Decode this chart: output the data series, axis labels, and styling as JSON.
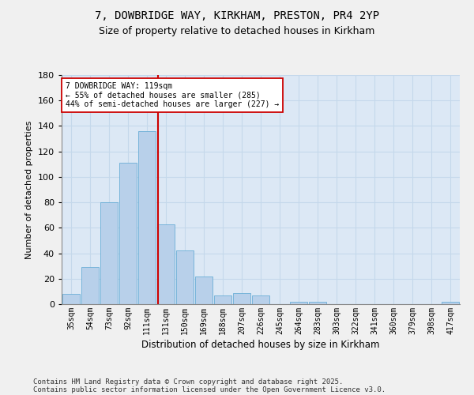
{
  "title1": "7, DOWBRIDGE WAY, KIRKHAM, PRESTON, PR4 2YP",
  "title2": "Size of property relative to detached houses in Kirkham",
  "xlabel": "Distribution of detached houses by size in Kirkham",
  "ylabel": "Number of detached properties",
  "bin_labels": [
    "35sqm",
    "54sqm",
    "73sqm",
    "92sqm",
    "111sqm",
    "131sqm",
    "150sqm",
    "169sqm",
    "188sqm",
    "207sqm",
    "226sqm",
    "245sqm",
    "264sqm",
    "283sqm",
    "303sqm",
    "322sqm",
    "341sqm",
    "360sqm",
    "379sqm",
    "398sqm",
    "417sqm"
  ],
  "bar_heights": [
    8,
    29,
    80,
    111,
    136,
    63,
    42,
    22,
    7,
    9,
    7,
    0,
    2,
    2,
    0,
    0,
    0,
    0,
    0,
    0,
    2
  ],
  "bar_color": "#b8d0ea",
  "bar_edge_color": "#6baed6",
  "vline_color": "#cc0000",
  "vline_x": 4.58,
  "annotation_line1": "7 DOWBRIDGE WAY: 119sqm",
  "annotation_line2": "← 55% of detached houses are smaller (285)",
  "annotation_line3": "44% of semi-detached houses are larger (227) →",
  "footer_line1": "Contains HM Land Registry data © Crown copyright and database right 2025.",
  "footer_line2": "Contains public sector information licensed under the Open Government Licence v3.0.",
  "ylim_max": 180,
  "yticks": [
    0,
    20,
    40,
    60,
    80,
    100,
    120,
    140,
    160,
    180
  ],
  "bg_color": "#dce8f5",
  "fig_bg": "#f0f0f0",
  "plot_bg": "#dce8f5"
}
